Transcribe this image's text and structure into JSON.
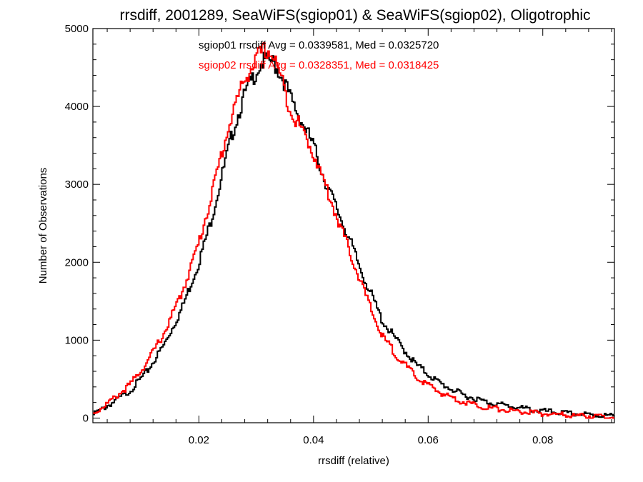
{
  "chart_data": {
    "type": "histogram",
    "title": "rrsdiff, 2001289, SeaWiFS(sgiop01) & SeaWiFS(sgiop02), Oligotrophic",
    "xlabel": "rrsdiff (relative)",
    "ylabel": "Number of Observations",
    "xlim": [
      0.0015,
      0.0925
    ],
    "ylim": [
      -60,
      5000
    ],
    "x_ticks": [
      0.02,
      0.04,
      0.06,
      0.08
    ],
    "x_tick_labels": [
      "0.02",
      "0.04",
      "0.06",
      "0.08"
    ],
    "y_ticks": [
      0,
      1000,
      2000,
      3000,
      4000,
      5000
    ],
    "y_tick_labels": [
      "0",
      "1000",
      "2000",
      "3000",
      "4000",
      "5000"
    ],
    "grid": false,
    "series": [
      {
        "name": "sgiop01",
        "color": "#000000",
        "annotation": "sgiop01 rrsdiff Avg = 0.0339581, Med = 0.0325720",
        "x": [
          0.0015,
          0.005,
          0.008,
          0.011,
          0.014,
          0.017,
          0.02,
          0.022,
          0.024,
          0.026,
          0.028,
          0.03,
          0.031,
          0.032,
          0.033,
          0.034,
          0.035,
          0.036,
          0.038,
          0.04,
          0.042,
          0.044,
          0.046,
          0.048,
          0.05,
          0.052,
          0.055,
          0.058,
          0.062,
          0.066,
          0.07,
          0.075,
          0.08,
          0.085,
          0.09,
          0.0925
        ],
        "y": [
          40,
          200,
          350,
          600,
          950,
          1400,
          2000,
          2500,
          3100,
          3700,
          4150,
          4450,
          4560,
          4600,
          4560,
          4450,
          4300,
          4100,
          3800,
          3500,
          3050,
          2700,
          2350,
          1950,
          1600,
          1250,
          950,
          680,
          450,
          300,
          210,
          140,
          90,
          55,
          35,
          25
        ]
      },
      {
        "name": "sgiop02",
        "color": "#ff0000",
        "annotation": "sgiop02 rrsdiff Avg = 0.0328351, Med = 0.0318425",
        "x": [
          0.0015,
          0.005,
          0.008,
          0.011,
          0.014,
          0.017,
          0.02,
          0.022,
          0.024,
          0.026,
          0.028,
          0.03,
          0.031,
          0.032,
          0.033,
          0.034,
          0.035,
          0.036,
          0.038,
          0.04,
          0.042,
          0.044,
          0.046,
          0.048,
          0.05,
          0.052,
          0.055,
          0.058,
          0.062,
          0.066,
          0.07,
          0.075,
          0.08,
          0.085,
          0.09,
          0.0925
        ],
        "y": [
          50,
          240,
          430,
          720,
          1100,
          1600,
          2250,
          2800,
          3400,
          3950,
          4350,
          4600,
          4700,
          4720,
          4650,
          4450,
          4200,
          3950,
          3700,
          3400,
          3000,
          2600,
          2200,
          1800,
          1400,
          1050,
          760,
          520,
          330,
          210,
          140,
          90,
          55,
          35,
          20,
          15
        ]
      }
    ]
  }
}
